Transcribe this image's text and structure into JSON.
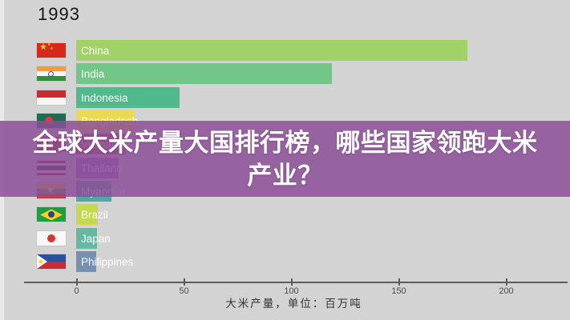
{
  "year": "1993",
  "overlay": {
    "line1": "全球大米产量大国排行榜，哪些国家领跑大米",
    "line2": "产业？",
    "background_color": "#8b4f97",
    "text_color": "#ffffff"
  },
  "axis": {
    "title": "大米产量，单位：百万吨",
    "tick_labels": [
      "0",
      "50",
      "100",
      "150",
      "200"
    ],
    "line_color": "#5c5c5c"
  },
  "chart_data": {
    "type": "bar",
    "orientation": "horizontal",
    "frame_year": "1993",
    "xlabel": "大米产量，单位：百万吨",
    "xlim": [
      0,
      230
    ],
    "x_ticks": [
      0,
      50,
      100,
      150,
      200
    ],
    "grid": false,
    "legend": false,
    "categories": [
      "China",
      "India",
      "Indonesia",
      "Bangladesh",
      "Vietnam",
      "Thailand",
      "Myanmar",
      "Brazil",
      "Japan",
      "Philippines"
    ],
    "values": [
      182,
      119,
      48.3,
      27,
      23,
      19.6,
      16.6,
      10.1,
      9.7,
      9.5
    ],
    "bar_colors": [
      "#a0d268",
      "#72c688",
      "#50b98e",
      "#ecd94f",
      "#c0506a",
      "#9a63c8",
      "#4fa8a4",
      "#c6d84e",
      "#66b8a3",
      "#7590b2"
    ],
    "flag_icons": [
      "flag-china-icon",
      "flag-india-icon",
      "flag-indonesia-icon",
      "flag-bangladesh-icon",
      "flag-vietnam-icon",
      "flag-thailand-icon",
      "flag-myanmar-icon",
      "flag-brazil-icon",
      "flag-japan-icon",
      "flag-philippines-icon"
    ]
  },
  "layout_note_values_are_data_only": "all visible text lives here"
}
